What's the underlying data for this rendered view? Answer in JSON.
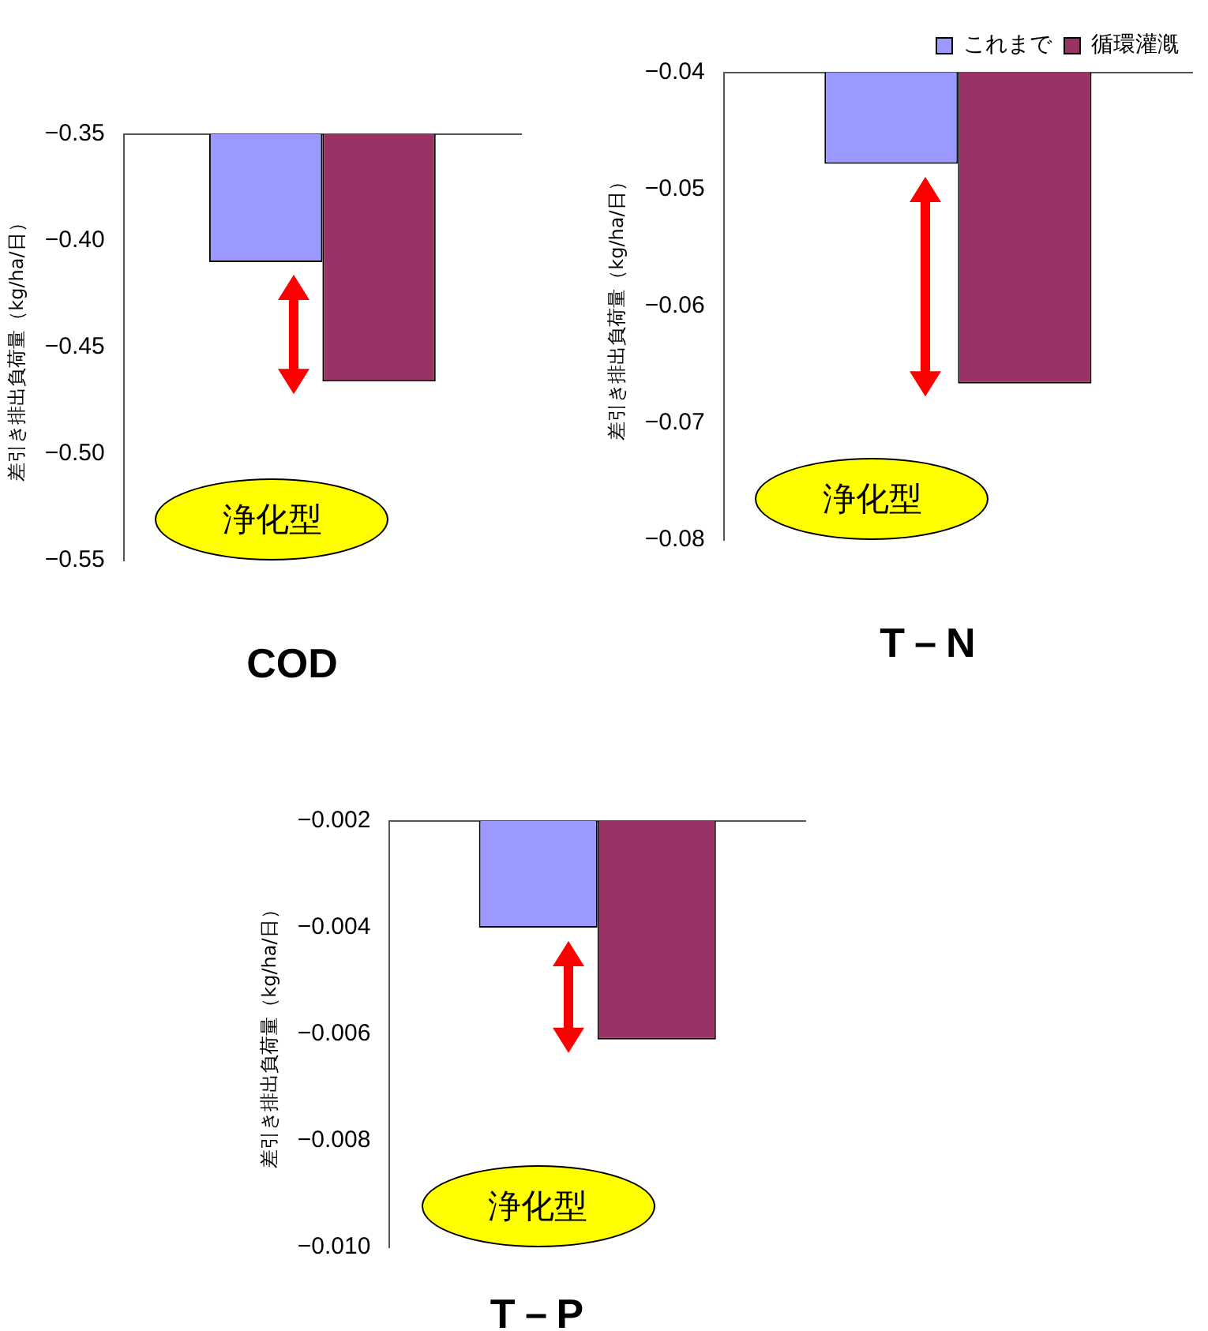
{
  "chart_data": [
    {
      "type": "bar",
      "title": "COD",
      "ylabel": "差引き排出負荷量（kg/ha/日）",
      "categories": [
        null
      ],
      "series": [
        {
          "color": "#9999ff",
          "values": [
            -0.41
          ]
        },
        {
          "color": "#993366",
          "values": [
            -0.466
          ]
        }
      ],
      "ylim": [
        -0.55,
        -0.35
      ],
      "yticks": [
        {
          "value": -0.35,
          "label": "−0.35"
        },
        {
          "value": -0.4,
          "label": "−0.40"
        },
        {
          "value": -0.45,
          "label": "−0.45"
        },
        {
          "value": -0.5,
          "label": "−0.50"
        },
        {
          "value": -0.55,
          "label": "−0.55"
        }
      ],
      "grid": false,
      "legend": false,
      "tick_labels": "y",
      "annotations": [
        "浄化型"
      ]
    },
    {
      "type": "bar",
      "title": "T－N",
      "ylabel": "差引き排出負荷量（kg/ha/日）",
      "categories": [
        null
      ],
      "series": [
        {
          "name": "これまで",
          "color": "#9999ff",
          "values": [
            -0.0478
          ]
        },
        {
          "name": "循環灌漑",
          "color": "#993366",
          "values": [
            -0.0666
          ]
        }
      ],
      "ylim": [
        -0.08,
        -0.04
      ],
      "yticks": [
        {
          "value": -0.04,
          "label": "−0.04"
        },
        {
          "value": -0.05,
          "label": "−0.05"
        },
        {
          "value": -0.06,
          "label": "−0.06"
        },
        {
          "value": -0.07,
          "label": "−0.07"
        },
        {
          "value": -0.08,
          "label": "−0.08"
        }
      ],
      "grid": false,
      "legend": "top right",
      "tick_labels": "y",
      "annotations": [
        "浄化型"
      ]
    },
    {
      "type": "bar",
      "title": "T－P",
      "ylabel": "差引き排出負荷量（kg/ha/日）",
      "categories": [
        null
      ],
      "series": [
        {
          "color": "#9999ff",
          "values": [
            -0.004
          ]
        },
        {
          "color": "#993366",
          "values": [
            -0.0061
          ]
        }
      ],
      "ylim": [
        -0.01,
        -0.002
      ],
      "yticks": [
        {
          "value": -0.002,
          "label": "−0.002"
        },
        {
          "value": -0.004,
          "label": "−0.004"
        },
        {
          "value": -0.006,
          "label": "−0.006"
        },
        {
          "value": -0.008,
          "label": "−0.008"
        },
        {
          "value": -0.01,
          "label": "−0.010"
        }
      ],
      "grid": false,
      "legend": false,
      "tick_labels": "y",
      "annotations": [
        "浄化型"
      ]
    }
  ]
}
